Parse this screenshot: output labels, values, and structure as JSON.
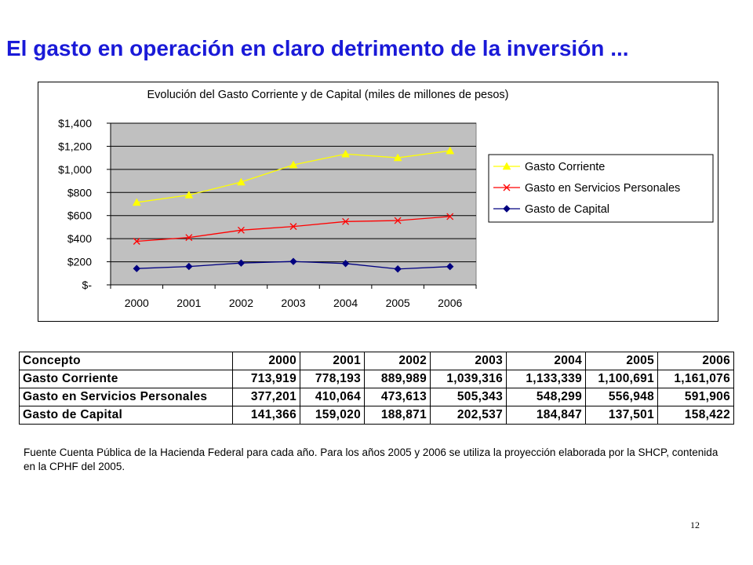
{
  "slide": {
    "title": "El gasto en operación en claro detrimento de la inversión ...",
    "source_note": "Fuente Cuenta Pública de la Hacienda Federal para cada año. Para los años 2005 y 2006 se utiliza la proyección elaborada por la SHCP, contenida en la CPHF del 2005.",
    "page_number": "12"
  },
  "chart_data": {
    "type": "line",
    "title": "Evolución del Gasto Corriente y de Capital  (miles de millones de pesos)",
    "categories": [
      "2000",
      "2001",
      "2002",
      "2003",
      "2004",
      "2005",
      "2006"
    ],
    "ylim": [
      0,
      1400
    ],
    "yticks": [
      0,
      200,
      400,
      600,
      800,
      1000,
      1200,
      1400
    ],
    "ytick_labels": [
      "$-",
      "$200",
      "$400",
      "$600",
      "$800",
      "$1,000",
      "$1,200",
      "$1,400"
    ],
    "grid": true,
    "plot_background": "#c0c0c0",
    "legend_position": "right",
    "series": [
      {
        "name": "Gasto Corriente",
        "values": [
          713.919,
          778.193,
          889.989,
          1039.316,
          1133.339,
          1100.691,
          1161.076
        ],
        "color": "#ffff00",
        "marker": "triangle"
      },
      {
        "name": "Gasto en Servicios Personales",
        "values": [
          377.201,
          410.064,
          473.613,
          505.343,
          548.299,
          556.948,
          591.906
        ],
        "color": "#ff0000",
        "marker": "x"
      },
      {
        "name": "Gasto de Capital",
        "values": [
          141.366,
          159.02,
          188.871,
          202.537,
          184.847,
          137.501,
          158.422
        ],
        "color": "#000080",
        "marker": "diamond"
      }
    ]
  },
  "table": {
    "header": [
      "Concepto",
      "2000",
      "2001",
      "2002",
      "2003",
      "2004",
      "2005",
      "2006"
    ],
    "rows": [
      [
        "Gasto Corriente",
        "713,919",
        "778,193",
        "889,989",
        "1,039,316",
        "1,133,339",
        "1,100,691",
        "1,161,076"
      ],
      [
        "Gasto en Servicios Personales",
        "377,201",
        "410,064",
        "473,613",
        "505,343",
        "548,299",
        "556,948",
        "591,906"
      ],
      [
        "Gasto de Capital",
        "141,366",
        "159,020",
        "188,871",
        "202,537",
        "184,847",
        "137,501",
        "158,422"
      ]
    ]
  }
}
